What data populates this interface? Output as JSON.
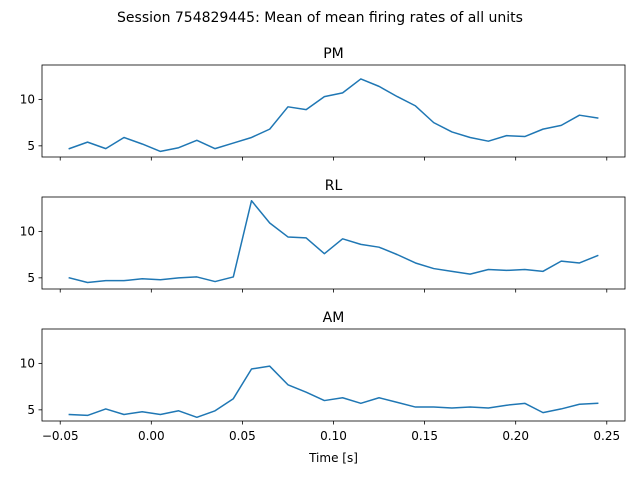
{
  "chart_data": {
    "type": "line",
    "title": "Session 754829445: Mean of mean firing rates of all units",
    "xlabel": "Time [s]",
    "xlim": [
      -0.06,
      0.26
    ],
    "ylim": [
      3.8,
      13.7
    ],
    "xticks": [
      -0.05,
      0.0,
      0.05,
      0.1,
      0.15,
      0.2,
      0.25
    ],
    "xtick_labels": [
      "−0.05",
      "0.00",
      "0.05",
      "0.10",
      "0.15",
      "0.20",
      "0.25"
    ],
    "yticks": [
      5,
      10
    ],
    "ytick_labels": [
      "5",
      "10"
    ],
    "shared_x": true,
    "shared_y": true,
    "grid": false,
    "color": "#1f77b4",
    "x": [
      -0.045,
      -0.035,
      -0.025,
      -0.015,
      -0.005,
      0.005,
      0.015,
      0.025,
      0.035,
      0.045,
      0.055,
      0.065,
      0.075,
      0.085,
      0.095,
      0.105,
      0.115,
      0.125,
      0.135,
      0.145,
      0.155,
      0.165,
      0.175,
      0.185,
      0.195,
      0.205,
      0.215,
      0.225,
      0.235,
      0.245
    ],
    "panels": [
      {
        "title": "PM",
        "values": [
          4.7,
          5.4,
          4.7,
          5.9,
          5.2,
          4.4,
          4.8,
          5.6,
          4.7,
          5.3,
          5.9,
          6.8,
          9.2,
          8.9,
          10.3,
          10.7,
          12.2,
          11.4,
          10.3,
          9.3,
          7.5,
          6.5,
          5.9,
          5.5,
          6.1,
          6.0,
          6.8,
          7.2,
          8.3,
          8.0
        ]
      },
      {
        "title": "RL",
        "values": [
          5.0,
          4.5,
          4.7,
          4.7,
          4.9,
          4.8,
          5.0,
          5.1,
          4.6,
          5.1,
          13.3,
          10.9,
          9.4,
          9.3,
          7.6,
          9.2,
          8.6,
          8.3,
          7.5,
          6.6,
          6.0,
          5.7,
          5.4,
          5.9,
          5.8,
          5.9,
          5.7,
          6.8,
          6.6,
          7.4
        ]
      },
      {
        "title": "AM",
        "values": [
          4.5,
          4.4,
          5.1,
          4.5,
          4.8,
          4.5,
          4.9,
          4.2,
          4.9,
          6.2,
          9.4,
          9.7,
          7.7,
          6.9,
          6.0,
          6.3,
          5.7,
          6.3,
          5.8,
          5.3,
          5.3,
          5.2,
          5.3,
          5.2,
          5.5,
          5.7,
          4.7,
          5.1,
          5.6,
          5.7
        ]
      }
    ]
  }
}
